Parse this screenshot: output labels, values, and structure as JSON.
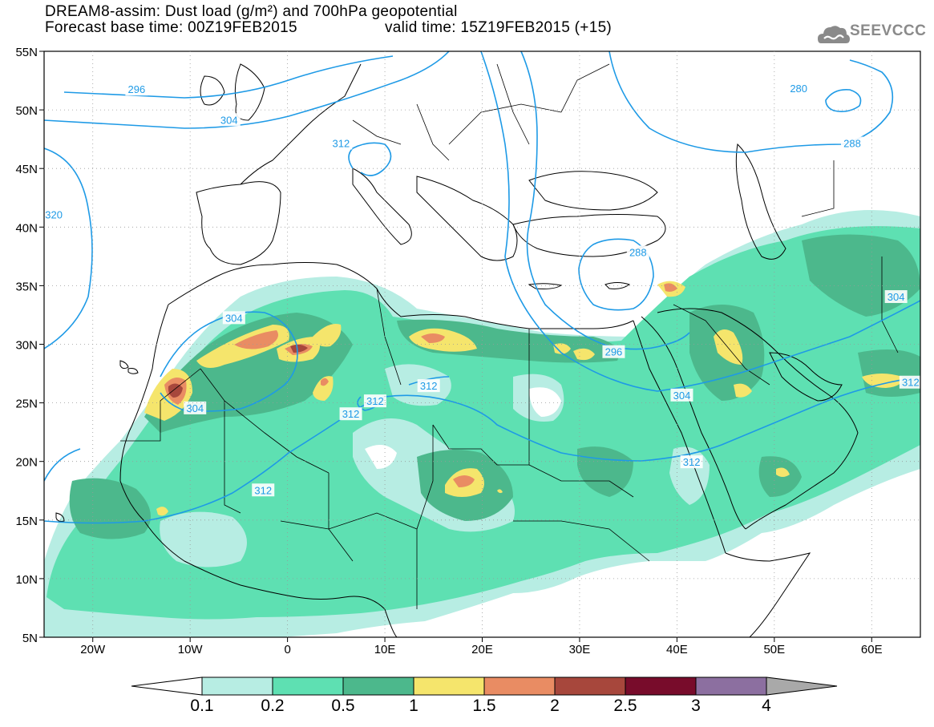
{
  "header": {
    "title_line1": "DREAM8-assim: Dust load (g/m²) and 700hPa geopotential",
    "base_time": "Forecast base time: 00Z19FEB2015",
    "valid_time": "valid time: 15Z19FEB2015 (+15)",
    "logo_text": "SEEVCCC"
  },
  "map": {
    "lat_labels": [
      "55N",
      "50N",
      "45N",
      "40N",
      "35N",
      "30N",
      "25N",
      "20N",
      "15N",
      "10N",
      "5N"
    ],
    "lon_labels": [
      "20W",
      "10W",
      "0",
      "10E",
      "20E",
      "30E",
      "40E",
      "50E",
      "60E"
    ],
    "lat_values": [
      55,
      50,
      45,
      40,
      35,
      30,
      25,
      20,
      15,
      10,
      5
    ],
    "lon_values": [
      -20,
      -10,
      0,
      10,
      20,
      30,
      40,
      50,
      60
    ],
    "lon_range": [
      -25,
      65
    ],
    "lat_range": [
      5,
      55
    ],
    "contour_labels": [
      {
        "text": "296",
        "lon": -15.5,
        "lat": 51.7
      },
      {
        "text": "304",
        "lon": -6.0,
        "lat": 49.1
      },
      {
        "text": "312",
        "lon": 5.5,
        "lat": 47.1
      },
      {
        "text": "320",
        "lon": -24.0,
        "lat": 41.0
      },
      {
        "text": "280",
        "lon": 52.5,
        "lat": 51.8
      },
      {
        "text": "288",
        "lon": 58.0,
        "lat": 47.1
      },
      {
        "text": "288",
        "lon": 36.0,
        "lat": 37.8
      },
      {
        "text": "304",
        "lon": -5.5,
        "lat": 32.2
      },
      {
        "text": "304",
        "lon": -9.5,
        "lat": 24.5
      },
      {
        "text": "296",
        "lon": 33.5,
        "lat": 29.3
      },
      {
        "text": "304",
        "lon": 40.5,
        "lat": 25.6
      },
      {
        "text": "304",
        "lon": 62.5,
        "lat": 34.0
      },
      {
        "text": "312",
        "lon": 14.5,
        "lat": 26.4
      },
      {
        "text": "312",
        "lon": 9.0,
        "lat": 25.1
      },
      {
        "text": "312",
        "lon": 6.5,
        "lat": 24.0
      },
      {
        "text": "312",
        "lon": -2.5,
        "lat": 17.5
      },
      {
        "text": "312",
        "lon": 41.5,
        "lat": 19.9
      },
      {
        "text": "312",
        "lon": 64.0,
        "lat": 26.7
      }
    ]
  },
  "legend": {
    "labels": [
      "0.1",
      "0.2",
      "0.5",
      "1",
      "1.5",
      "2",
      "2.5",
      "3",
      "4"
    ],
    "colors": [
      "#ffffff",
      "#b7ede3",
      "#5ee0b2",
      "#4cb88c",
      "#f5e56c",
      "#e98c63",
      "#a7473c",
      "#780c2b",
      "#8c6fa0",
      "#a9a9a9"
    ]
  }
}
